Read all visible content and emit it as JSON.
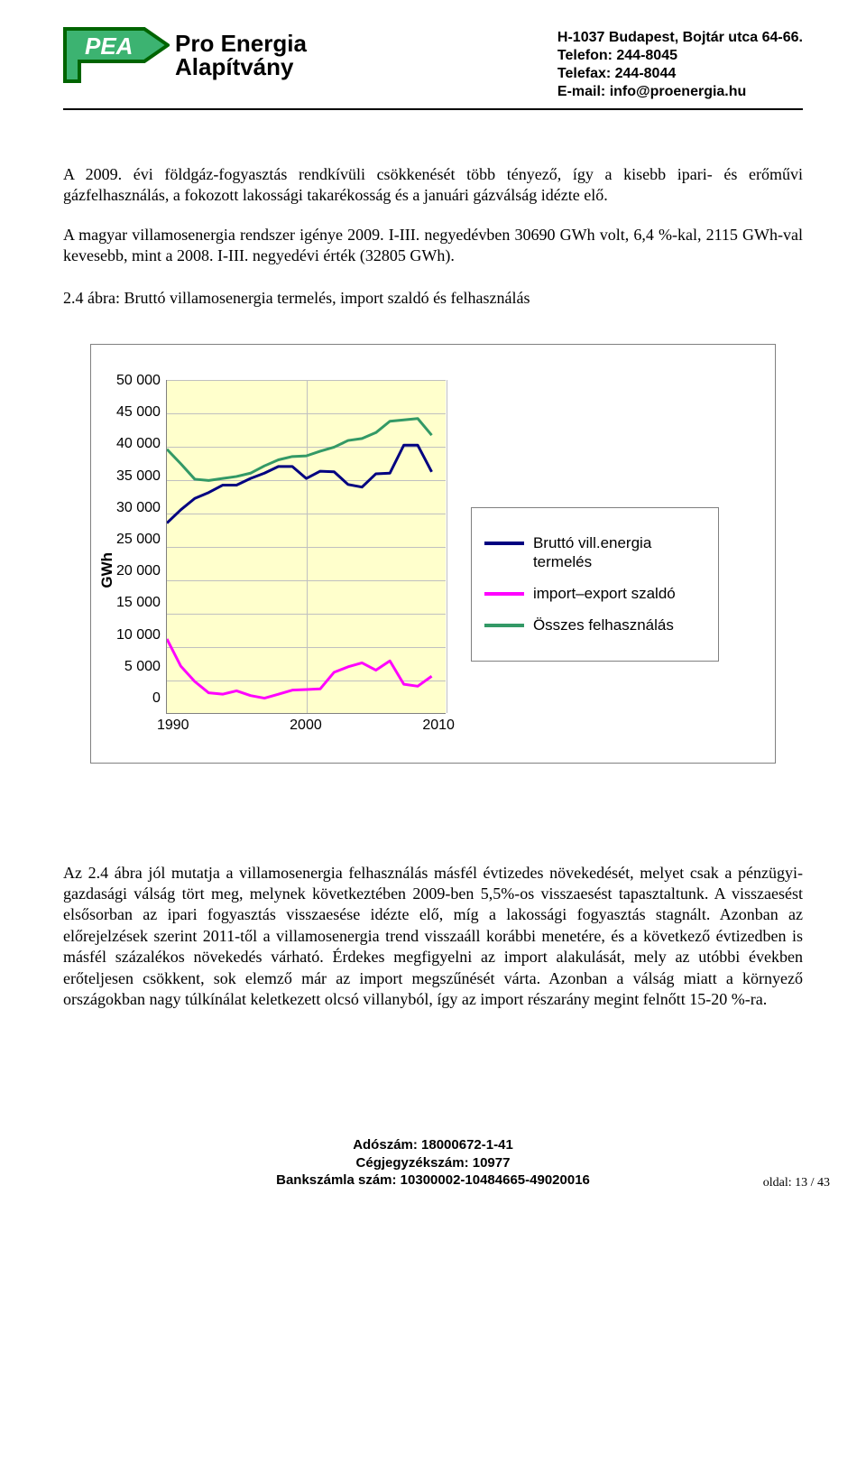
{
  "header": {
    "logo": {
      "abbr": "PEA",
      "line1": "Pro Energia",
      "line2": "Alapítvány",
      "badge_fill": "#3cb371",
      "badge_outline": "#006400"
    },
    "contact": {
      "l1": "H-1037 Budapest, Bojtár utca 64-66.",
      "l2": "Telefon: 244-8045",
      "l3": "Telefax: 244-8044",
      "l4": "E-mail: info@proenergia.hu"
    }
  },
  "para1": "A 2009. évi földgáz-fogyasztás rendkívüli csökkenését több tényező, így a kisebb ipari- és erőművi gázfelhasználás, a fokozott lakossági takarékosság és a januári gázválság idézte elő.",
  "para2": "A magyar villamosenergia rendszer igénye 2009. I-III. negyedévben 30690 GWh volt, 6,4 %-kal, 2115 GWh-val kevesebb, mint a 2008. I-III. negyedévi érték (32805 GWh).",
  "caption": "2.4 ábra: Bruttó villamosenergia termelés, import szaldó és felhasználás",
  "chart": {
    "type": "line",
    "background_color": "#ffffcc",
    "grid_color": "#c0c0c0",
    "border_color": "#808080",
    "ylabel": "GWh",
    "ylim": [
      0,
      50000
    ],
    "ytick_step": 5000,
    "yticks": [
      "50 000",
      "45 000",
      "40 000",
      "35 000",
      "30 000",
      "25 000",
      "20 000",
      "15 000",
      "10 000",
      "5 000",
      "0"
    ],
    "xlim": [
      1990,
      2010
    ],
    "xticks": [
      "1990",
      "2000",
      "2010"
    ],
    "x_years": [
      1990,
      1991,
      1992,
      1993,
      1994,
      1995,
      1996,
      1997,
      1998,
      1999,
      2000,
      2001,
      2002,
      2003,
      2004,
      2005,
      2006,
      2007,
      2008,
      2009
    ],
    "series": {
      "brutto": {
        "label": "Bruttó vill.energia termelés",
        "color": "#000080",
        "width": 3,
        "values": [
          28500,
          30500,
          32200,
          33100,
          34200,
          34200,
          35200,
          36000,
          37000,
          37000,
          35200,
          36300,
          36200,
          34300,
          33900,
          35900,
          36000,
          40200,
          40200,
          36200
        ]
      },
      "import": {
        "label": "import–export szaldó",
        "color": "#ff00ff",
        "width": 3,
        "values": [
          11100,
          7000,
          4700,
          3000,
          2800,
          3300,
          2600,
          2200,
          2800,
          3400,
          3500,
          3600,
          6100,
          6900,
          7500,
          6400,
          7800,
          4300,
          4000,
          5500
        ]
      },
      "osszes": {
        "label": "Összes felhasználás",
        "color": "#339966",
        "width": 3,
        "values": [
          39600,
          37400,
          35100,
          34900,
          35200,
          35500,
          36000,
          37100,
          38000,
          38500,
          38600,
          39300,
          39900,
          40900,
          41200,
          42100,
          43800,
          44000,
          44200,
          41700
        ]
      }
    }
  },
  "para3": "Az 2.4 ábra jól mutatja a villamosenergia felhasználás másfél évtizedes növekedését, melyet csak a pénzügyi-gazdasági válság tört meg, melynek következtében 2009-ben 5,5%-os visszaesést tapasztaltunk. A visszaesést elsősorban az ipari fogyasztás visszaesése idézte elő, míg a lakossági fogyasztás stagnált. Azonban az előrejelzések szerint 2011-től a villamosenergia trend visszaáll korábbi menetére, és a következő évtizedben is másfél százalékos növekedés várható. Érdekes megfigyelni az import alakulását, mely az utóbbi években erőteljesen csökkent, sok elemző már az import megszűnését várta. Azonban a válság miatt a környező országokban nagy túlkínálat keletkezett olcsó villanyból, így az import részarány megint felnőtt 15-20 %-ra.",
  "footer": {
    "l1": "Adószám: 18000672-1-41",
    "l2": "Cégjegyzékszám: 10977",
    "l3": "Bankszámla szám: 10300002-10484665-49020016",
    "page": "oldal: 13 / 43"
  }
}
